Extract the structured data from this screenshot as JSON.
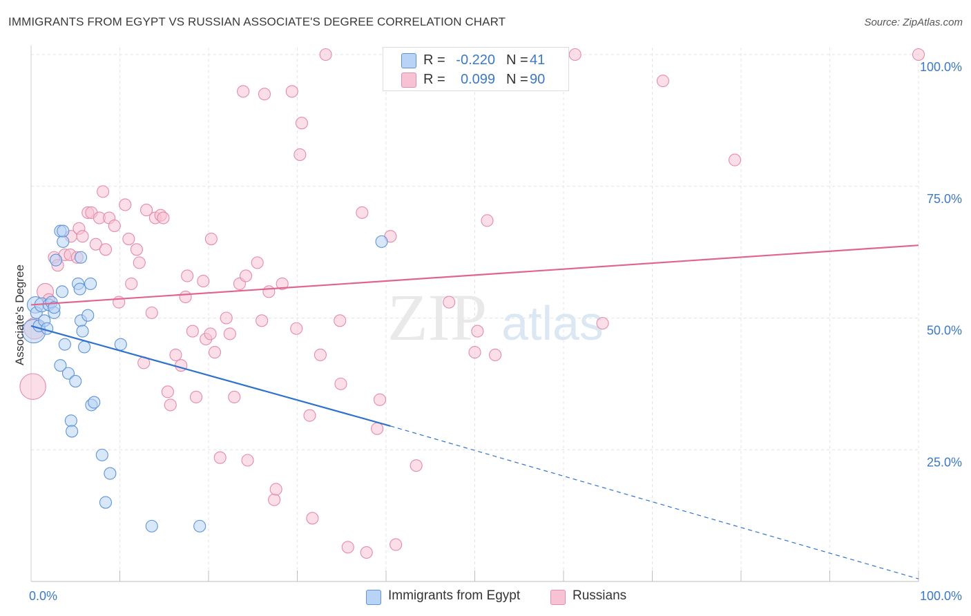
{
  "title": "IMMIGRANTS FROM EGYPT VS RUSSIAN ASSOCIATE'S DEGREE CORRELATION CHART",
  "source": "Source: ZipAtlas.com",
  "watermark": {
    "zip": "ZIP",
    "atlas": "atlas"
  },
  "colors": {
    "egypt_fill": "#b8d3f5",
    "egypt_stroke": "#5e93d6",
    "egypt_line": "#2f72cc",
    "russia_fill": "#f7c2d3",
    "russia_stroke": "#e58aa8",
    "russia_line": "#e0648e",
    "grid": "#e3e3e3",
    "tick_label": "#3a78c9"
  },
  "legend": {
    "egypt": {
      "r_label": "R =",
      "r_value": "-0.220",
      "n_label": "N =",
      "n_value": "41"
    },
    "russia": {
      "r_label": "R =",
      "r_value": "0.099",
      "n_label": "N =",
      "n_value": "90"
    }
  },
  "bottom_legend": {
    "egypt": "Immigrants from Egypt",
    "russia": "Russians"
  },
  "chart_data": {
    "type": "scatter",
    "ylabel": "Associate's Degree",
    "xlim": [
      0,
      100
    ],
    "ylim": [
      0,
      100
    ],
    "x_tick_labels": [
      {
        "value": 0,
        "label": "0.0%"
      },
      {
        "value": 100,
        "label": "100.0%"
      }
    ],
    "y_tick_labels": [
      {
        "value": 25,
        "label": "25.0%"
      },
      {
        "value": 50,
        "label": "50.0%"
      },
      {
        "value": 75,
        "label": "75.0%"
      },
      {
        "value": 100,
        "label": "100.0%"
      }
    ],
    "grid": true,
    "series": [
      {
        "name": "Immigrants from Egypt",
        "trend": {
          "x0": 0,
          "y0": 48.5,
          "x1": 40.5,
          "y1": 29.5,
          "dash_to_x": 100,
          "dash_to_y": 0.5
        },
        "points": [
          [
            0.3,
            47.5,
            2
          ],
          [
            0.5,
            52.5,
            1.4
          ],
          [
            0.6,
            51,
            1
          ],
          [
            0.9,
            48.5,
            1
          ],
          [
            1.2,
            52.5,
            1.2
          ],
          [
            1.5,
            49.5,
            1
          ],
          [
            1.8,
            48,
            1
          ],
          [
            2,
            52.5,
            1
          ],
          [
            2.3,
            53,
            1
          ],
          [
            2.6,
            51,
            1
          ],
          [
            2.6,
            52,
            1
          ],
          [
            2.8,
            61,
            1
          ],
          [
            3.3,
            41,
            1
          ],
          [
            3.3,
            66.5,
            1
          ],
          [
            3.5,
            55,
            1
          ],
          [
            3.6,
            64.5,
            1
          ],
          [
            3.6,
            66.5,
            1
          ],
          [
            3.8,
            45,
            1
          ],
          [
            4.2,
            39.5,
            1
          ],
          [
            4.5,
            30.5,
            1
          ],
          [
            4.6,
            28.5,
            1
          ],
          [
            5,
            38,
            1
          ],
          [
            5.3,
            56.5,
            1
          ],
          [
            5.5,
            55.5,
            1
          ],
          [
            5.6,
            61.5,
            1
          ],
          [
            5.6,
            49.5,
            1
          ],
          [
            5.8,
            47.5,
            1
          ],
          [
            6,
            44.5,
            1
          ],
          [
            6.4,
            50.5,
            1
          ],
          [
            6.7,
            56.5,
            1
          ],
          [
            6.8,
            33.5,
            1
          ],
          [
            7.1,
            34,
            1
          ],
          [
            8,
            24,
            1
          ],
          [
            8.4,
            15,
            1
          ],
          [
            8.9,
            20.5,
            1
          ],
          [
            10.1,
            45,
            1
          ],
          [
            13.6,
            10.5,
            1
          ],
          [
            19,
            10.5,
            1
          ],
          [
            39.5,
            64.5,
            1
          ]
        ]
      },
      {
        "name": "Russians",
        "trend": {
          "x0": 0,
          "y0": 52.5,
          "x1": 100,
          "y1": 63.8
        },
        "points": [
          [
            0.2,
            37,
            2.2
          ],
          [
            0.4,
            48,
            1.8
          ],
          [
            1.6,
            55,
            1.4
          ],
          [
            2,
            53.5,
            1
          ],
          [
            2.6,
            61.5,
            1
          ],
          [
            3,
            60,
            1
          ],
          [
            3.8,
            62,
            1
          ],
          [
            4.4,
            62,
            1
          ],
          [
            4.5,
            65.5,
            1
          ],
          [
            5.2,
            61.5,
            1
          ],
          [
            5.4,
            67,
            1
          ],
          [
            5.8,
            65.5,
            1
          ],
          [
            6.4,
            70,
            1
          ],
          [
            6.8,
            70,
            1
          ],
          [
            7.3,
            64,
            1
          ],
          [
            7.7,
            69,
            1
          ],
          [
            8.1,
            74,
            1
          ],
          [
            8.4,
            63,
            1
          ],
          [
            8.8,
            69,
            1
          ],
          [
            9.4,
            67.5,
            1
          ],
          [
            9.9,
            53,
            1
          ],
          [
            10.6,
            71.5,
            1
          ],
          [
            11,
            65,
            1
          ],
          [
            11.3,
            56.5,
            1
          ],
          [
            11.9,
            63,
            1
          ],
          [
            12.2,
            60.5,
            1
          ],
          [
            12.7,
            41.5,
            1
          ],
          [
            13,
            70.5,
            1
          ],
          [
            13.6,
            51,
            1
          ],
          [
            14,
            69,
            1
          ],
          [
            14.6,
            69.5,
            1
          ],
          [
            14.9,
            69,
            1
          ],
          [
            15.4,
            36,
            1
          ],
          [
            15.7,
            33.5,
            1
          ],
          [
            16.3,
            43,
            1
          ],
          [
            16.9,
            41,
            1
          ],
          [
            17.4,
            54,
            1
          ],
          [
            17.6,
            58,
            1
          ],
          [
            18.2,
            47.5,
            1
          ],
          [
            18.6,
            35,
            1
          ],
          [
            19.4,
            57,
            1
          ],
          [
            19.7,
            46,
            1
          ],
          [
            20.2,
            47,
            1
          ],
          [
            20.3,
            65,
            1
          ],
          [
            20.7,
            43.5,
            1
          ],
          [
            21.3,
            23.5,
            1
          ],
          [
            22,
            50,
            1
          ],
          [
            22.4,
            47,
            1
          ],
          [
            22.9,
            35,
            1
          ],
          [
            23.5,
            56.5,
            1
          ],
          [
            23.9,
            93,
            1
          ],
          [
            24.2,
            58,
            1
          ],
          [
            24.4,
            23,
            1
          ],
          [
            25.5,
            60.5,
            1
          ],
          [
            26,
            49.5,
            1
          ],
          [
            26.3,
            92.5,
            1
          ],
          [
            26.8,
            55,
            1
          ],
          [
            27.4,
            15.5,
            1
          ],
          [
            27.6,
            17.5,
            1
          ],
          [
            28.3,
            56.5,
            1
          ],
          [
            29.4,
            93,
            1
          ],
          [
            29.9,
            48,
            1
          ],
          [
            30.5,
            87,
            1
          ],
          [
            30.3,
            81,
            1
          ],
          [
            31.4,
            31.5,
            1
          ],
          [
            31.7,
            12,
            1
          ],
          [
            32.6,
            43,
            1
          ],
          [
            33.2,
            100,
            1
          ],
          [
            34.8,
            49.5,
            1
          ],
          [
            34.9,
            37.5,
            1
          ],
          [
            35.7,
            6.5,
            1
          ],
          [
            37.3,
            70,
            1
          ],
          [
            37.8,
            5.5,
            1
          ],
          [
            39,
            29,
            1
          ],
          [
            39.3,
            34.5,
            1
          ],
          [
            40.5,
            65.5,
            1
          ],
          [
            41.1,
            7,
            1
          ],
          [
            43.4,
            22,
            1
          ],
          [
            47.1,
            53,
            1
          ],
          [
            50,
            43.5,
            1
          ],
          [
            50.3,
            47.5,
            1
          ],
          [
            51.4,
            68.5,
            1
          ],
          [
            52.3,
            43,
            1
          ],
          [
            59.6,
            100,
            1
          ],
          [
            61.3,
            100,
            1
          ],
          [
            64.4,
            49,
            1
          ],
          [
            71.2,
            95,
            1
          ],
          [
            79.3,
            80,
            1
          ],
          [
            100,
            100,
            1
          ]
        ]
      }
    ]
  }
}
